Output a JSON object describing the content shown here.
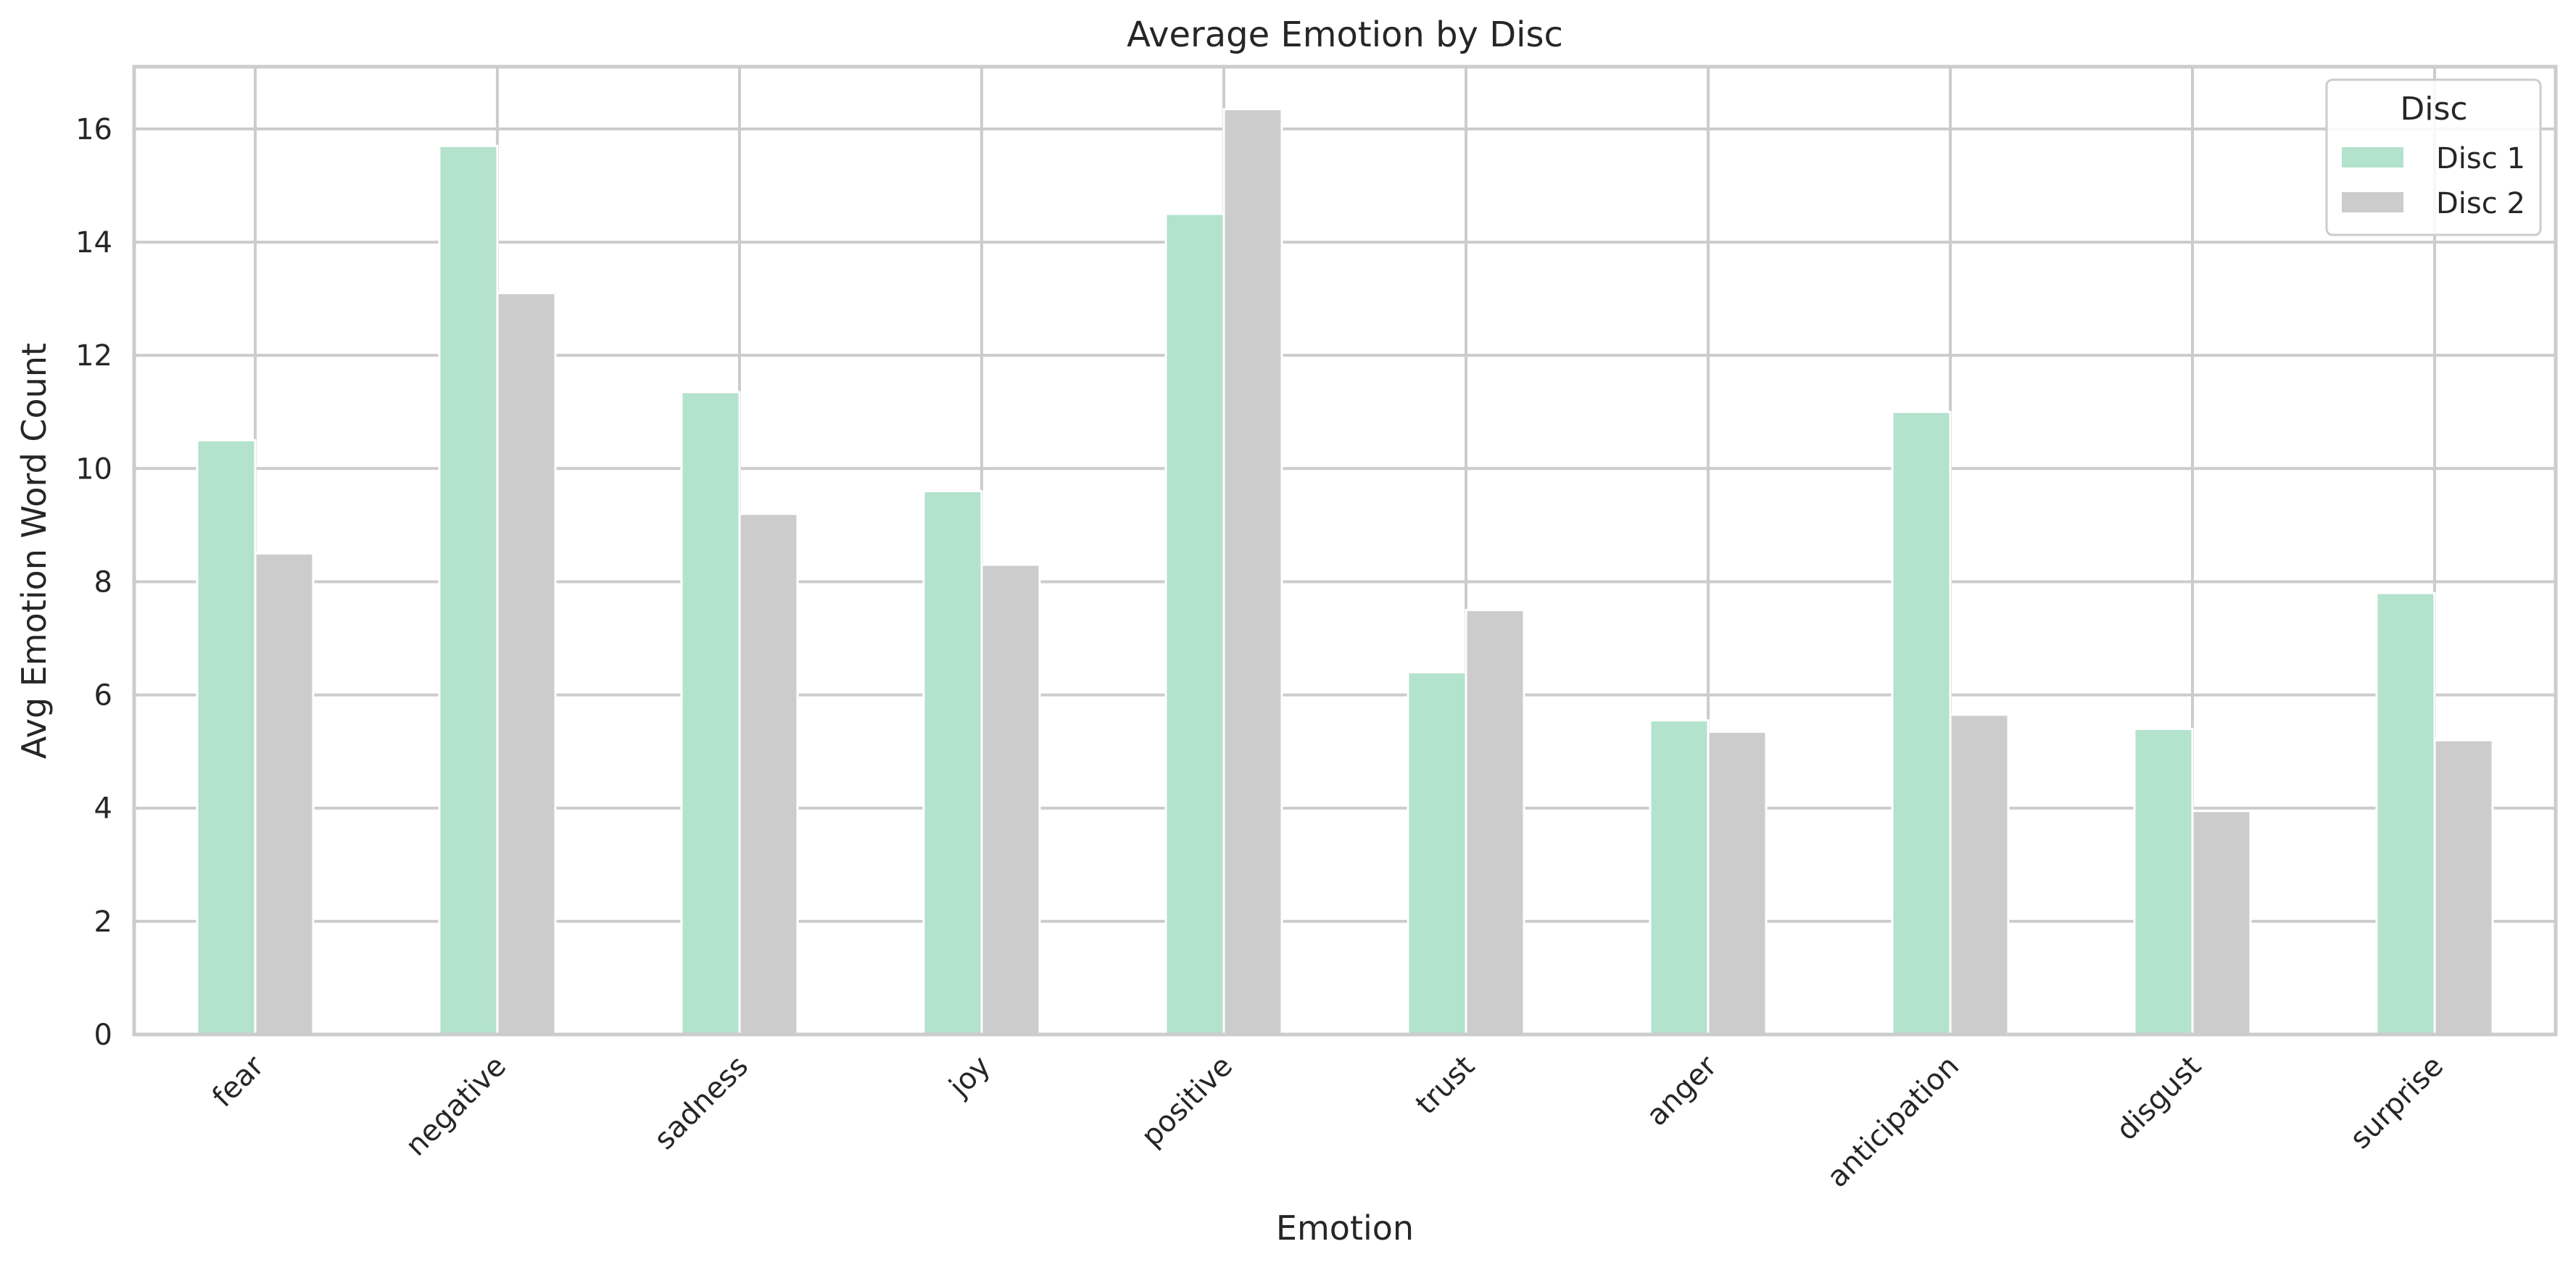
{
  "colors": {
    "series": [
      "#b3e2cd",
      "#cccccc"
    ],
    "grid": "#cccccc",
    "frame": "#cccccc",
    "background": "#ffffff",
    "text": "#262626"
  },
  "chart_data": {
    "type": "bar",
    "title": "Average Emotion by Disc",
    "xlabel": "Emotion",
    "ylabel": "Avg Emotion Word Count",
    "categories": [
      "fear",
      "negative",
      "sadness",
      "joy",
      "positive",
      "trust",
      "anger",
      "anticipation",
      "disgust",
      "surprise"
    ],
    "series": [
      {
        "name": "Disc 1",
        "values": [
          10.5,
          15.7,
          11.35,
          9.6,
          14.5,
          6.4,
          5.55,
          11.0,
          5.4,
          7.8
        ]
      },
      {
        "name": "Disc 2",
        "values": [
          8.5,
          13.1,
          9.2,
          8.3,
          16.35,
          7.5,
          5.35,
          5.65,
          3.95,
          5.2
        ]
      }
    ],
    "ylim": [
      0,
      17.1
    ],
    "yticks": [
      0,
      2,
      4,
      6,
      8,
      10,
      12,
      14,
      16
    ],
    "grid": true,
    "legend": {
      "title": "Disc",
      "placement": "top-right"
    },
    "xtick_rotation": 45
  }
}
